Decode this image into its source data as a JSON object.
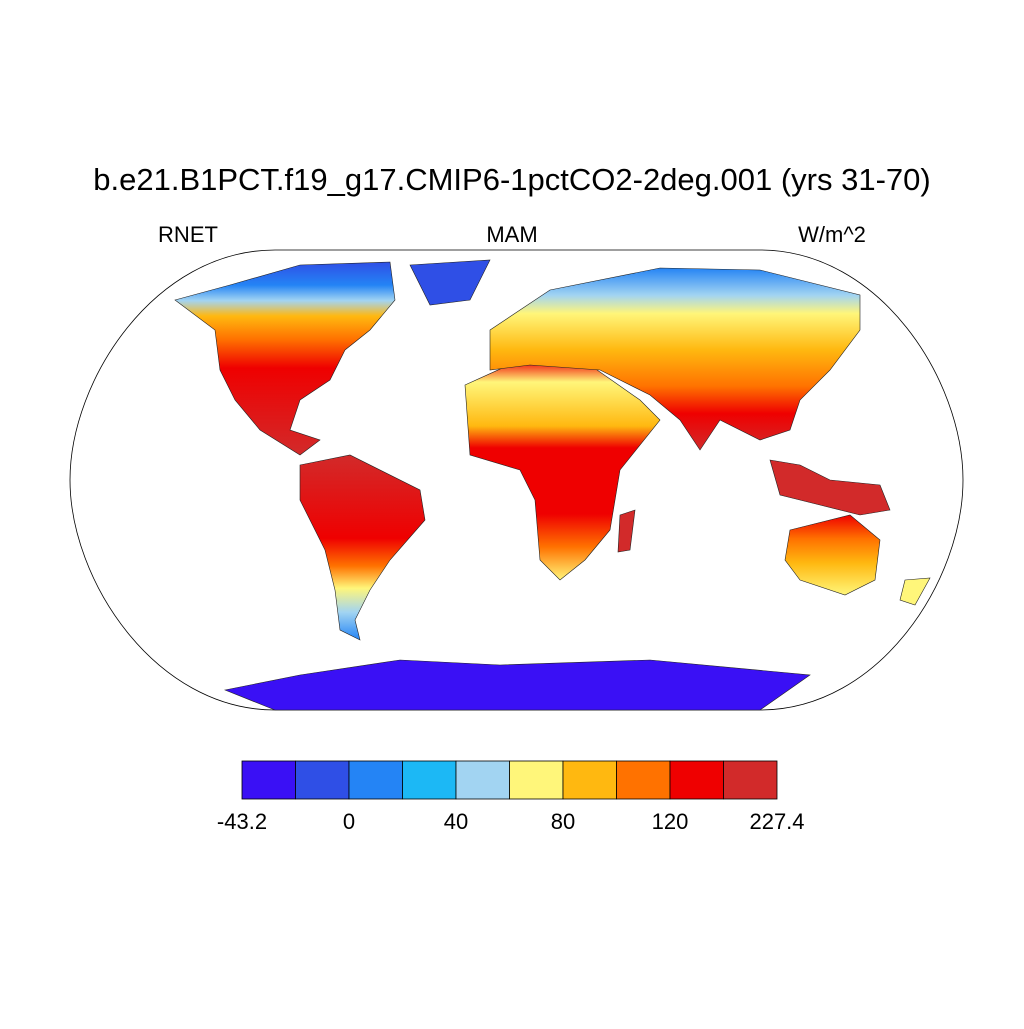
{
  "title": "b.e21.B1PCT.f19_g17.CMIP6-1pctCO2-2deg.001 (yrs 31-70)",
  "left_label": "RNET",
  "center_label": "MAM",
  "right_label": "W/m^2",
  "colorbar": {
    "colors": [
      "#3a10f5",
      "#2f4fe6",
      "#2484f5",
      "#1cb8f5",
      "#a2d4f2",
      "#fff67a",
      "#ffb810",
      "#ff7200",
      "#ef0000",
      "#d22a2a"
    ],
    "labels": [
      "-43.2",
      "0",
      "40",
      "80",
      "120",
      "227.4"
    ]
  }
}
